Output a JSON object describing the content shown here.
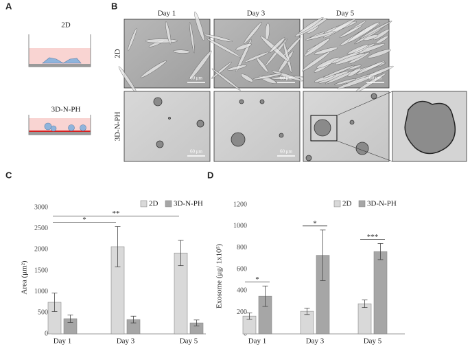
{
  "panels": {
    "a": "A",
    "b": "B",
    "c": "C",
    "d": "D"
  },
  "schematic": {
    "top": "2D",
    "bottom": "3D-N-PH"
  },
  "micrographs": {
    "columns": [
      "Day 1",
      "Day 3",
      "Day 5"
    ],
    "rows": [
      "2D",
      "3D-N-PH"
    ],
    "scale_bar": "60 μm"
  },
  "chart_data": [
    {
      "type": "bar",
      "y_label": "Area (μm²)",
      "categories": [
        "Day 1",
        "Day 3",
        "Day 5"
      ],
      "series": [
        {
          "name": "2D",
          "color": "#d9d9d9",
          "values": [
            750,
            2070,
            1920
          ],
          "errors": [
            220,
            480,
            300
          ]
        },
        {
          "name": "3D-N-PH",
          "color": "#a6a6a6",
          "values": [
            360,
            340,
            260
          ],
          "errors": [
            90,
            80,
            70
          ]
        }
      ],
      "ylim": [
        0,
        3000
      ],
      "yticks": [
        0,
        500,
        1000,
        1500,
        2000,
        2500,
        3000
      ],
      "annotations": [
        {
          "label": "*",
          "from": "Day 1",
          "to": "Day 3"
        },
        {
          "label": "**",
          "from": "Day 1",
          "to": "Day 5"
        }
      ]
    },
    {
      "type": "bar",
      "y_label": "Exosome (μg/ 1x10⁵)",
      "categories": [
        "Day 1",
        "Day 3",
        "Day 5"
      ],
      "series": [
        {
          "name": "2D",
          "color": "#d9d9d9",
          "values": [
            165,
            210,
            280
          ],
          "errors": [
            30,
            30,
            35
          ]
        },
        {
          "name": "3D-N-PH",
          "color": "#a6a6a6",
          "values": [
            350,
            730,
            765
          ],
          "errors": [
            95,
            235,
            75
          ]
        }
      ],
      "ylim": [
        0,
        1200
      ],
      "yticks": [
        0,
        200,
        400,
        600,
        800,
        1000,
        1200
      ],
      "annotations": [
        {
          "label": "*",
          "from": "Day 1",
          "to": "Day 1"
        },
        {
          "label": "*",
          "from": "Day 3",
          "to": "Day 3"
        },
        {
          "label": "***",
          "from": "Day 5",
          "to": "Day 5"
        }
      ]
    }
  ]
}
